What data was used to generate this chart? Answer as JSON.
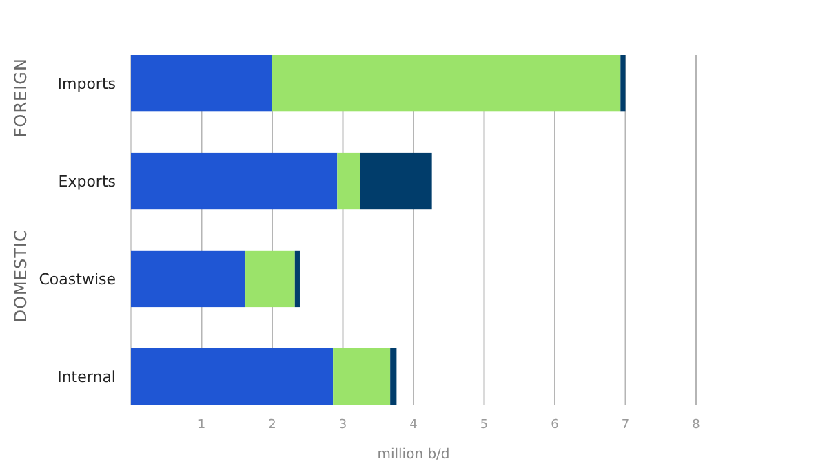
{
  "chart_data": {
    "type": "bar",
    "orientation": "horizontal",
    "stacked": true,
    "categories": [
      "Imports",
      "Exports",
      "Coastwise",
      "Internal"
    ],
    "series": [
      {
        "color": "#1f56d4",
        "values": [
          2.0,
          2.92,
          1.62,
          2.86
        ]
      },
      {
        "color": "#9be36a",
        "values": [
          4.93,
          0.32,
          0.7,
          0.81
        ]
      },
      {
        "color": "#013d6b",
        "values": [
          0.07,
          1.02,
          0.07,
          0.09
        ]
      }
    ],
    "xlabel": "million b/d",
    "xlim": [
      0,
      8
    ],
    "xticks": [
      1,
      2,
      3,
      4,
      5,
      6,
      7,
      8
    ],
    "grid": "x",
    "annotations": [
      "FOREIGN",
      "DOMESTIC"
    ]
  }
}
